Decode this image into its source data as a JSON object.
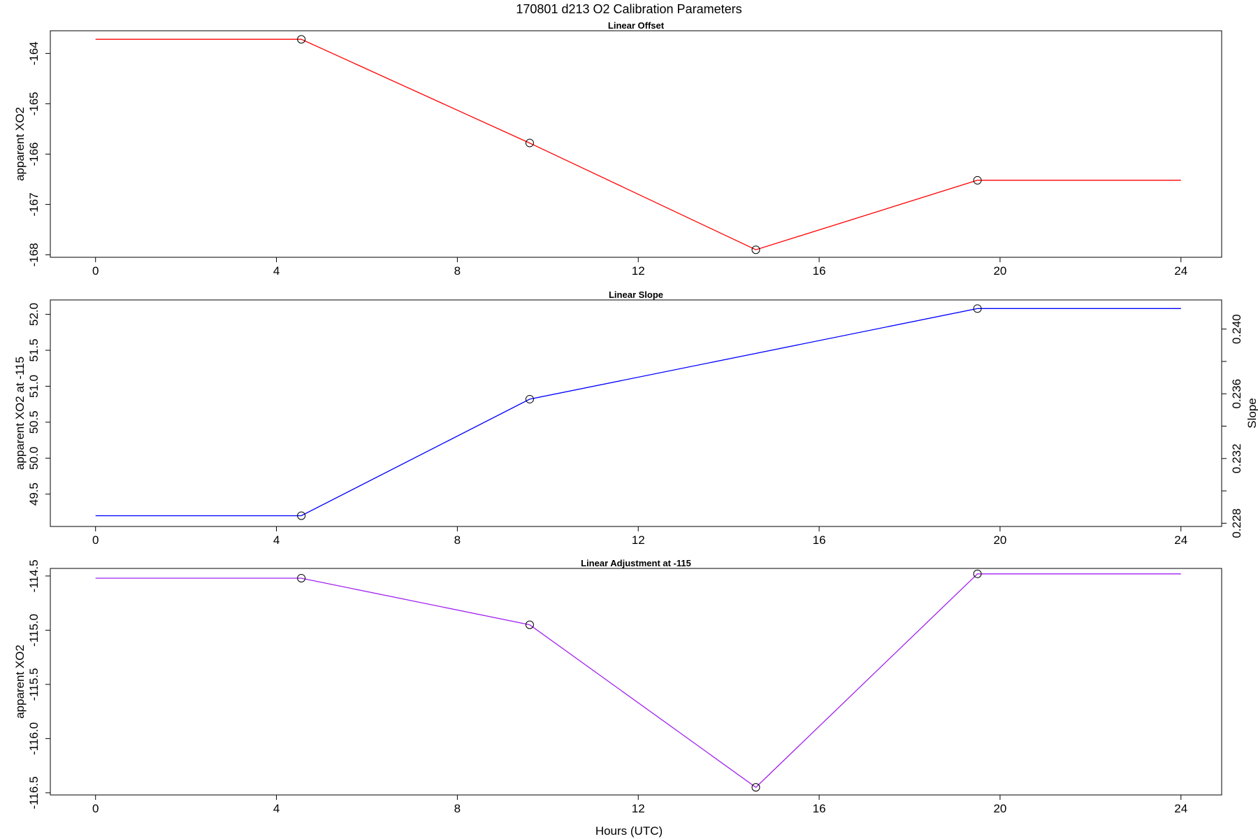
{
  "figure": {
    "title": "170801   d213   O2 Calibration Parameters",
    "xlabel": "Hours (UTC)"
  },
  "chart_data": [
    {
      "type": "line",
      "title": "Linear Offset",
      "xlabel": "",
      "ylabel": "apparent XO2",
      "xlim": [
        -1,
        24.9
      ],
      "ylim": [
        -168.05,
        -163.55
      ],
      "xticks": [
        0,
        4,
        8,
        12,
        16,
        20,
        24
      ],
      "yticks": [
        -168,
        -167,
        -166,
        -165,
        -164
      ],
      "ytick_labels": [
        "-168",
        "-167",
        "-166",
        "-165",
        "-164"
      ],
      "color": "#ff0000",
      "points": {
        "x": [
          4.55,
          9.6,
          14.6,
          19.5
        ],
        "y": [
          -163.72,
          -165.78,
          -167.9,
          -166.52
        ]
      },
      "line": {
        "x": [
          0,
          4.55,
          9.6,
          14.6,
          19.5,
          24
        ],
        "y": [
          -163.72,
          -163.72,
          -165.78,
          -167.9,
          -166.52,
          -166.52
        ]
      }
    },
    {
      "type": "line",
      "title": "Linear Slope",
      "xlabel": "",
      "ylabel": "apparent XO2 at -115",
      "ylabel_right": "Slope",
      "xlim": [
        -1,
        24.9
      ],
      "ylim": [
        49.05,
        52.2
      ],
      "xticks": [
        0,
        4,
        8,
        12,
        16,
        20,
        24
      ],
      "yticks": [
        49.5,
        50.0,
        50.5,
        51.0,
        51.5,
        52.0
      ],
      "ytick_labels": [
        "49.5",
        "50.0",
        "50.5",
        "51.0",
        "51.5",
        "52.0"
      ],
      "right_axis": {
        "ylim": [
          0.2278,
          0.2418
        ],
        "ticks": [
          0.228,
          0.23,
          0.232,
          0.234,
          0.236,
          0.238,
          0.24
        ],
        "labeled_ticks": [
          0.228,
          0.232,
          0.236,
          0.24
        ],
        "tick_labels": [
          "0.228",
          "0.232",
          "0.236",
          "0.240"
        ]
      },
      "color": "#0000ff",
      "points": {
        "x": [
          4.55,
          9.6,
          19.5
        ],
        "y": [
          49.2,
          50.82,
          52.08
        ]
      },
      "line": {
        "x": [
          0,
          4.55,
          9.6,
          19.5,
          24
        ],
        "y": [
          49.2,
          49.2,
          50.82,
          52.08,
          52.08
        ]
      }
    },
    {
      "type": "line",
      "title": "Linear Adjustment at -115",
      "xlabel": "Hours (UTC)",
      "ylabel": "apparent XO2",
      "xlim": [
        -1,
        24.9
      ],
      "ylim": [
        -116.52,
        -114.43
      ],
      "xticks": [
        0,
        4,
        8,
        12,
        16,
        20,
        24
      ],
      "yticks": [
        -116.5,
        -116.0,
        -115.5,
        -115.0,
        -114.5
      ],
      "ytick_labels": [
        "-116.5",
        "-116.0",
        "-115.5",
        "-115.0",
        "-114.5"
      ],
      "color": "#a020f0",
      "points": {
        "x": [
          4.55,
          9.6,
          14.6,
          19.5
        ],
        "y": [
          -114.52,
          -114.95,
          -116.45,
          -114.48
        ]
      },
      "line": {
        "x": [
          0,
          4.55,
          9.6,
          14.6,
          19.5,
          24
        ],
        "y": [
          -114.52,
          -114.52,
          -114.95,
          -116.45,
          -114.48,
          -114.48
        ]
      }
    }
  ]
}
